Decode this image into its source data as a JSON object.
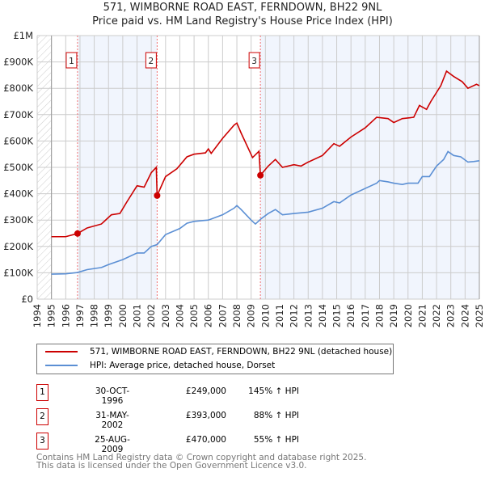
{
  "chart_data": {
    "type": "line",
    "title": "571, WIMBORNE ROAD EAST, FERNDOWN, BH22 9NL",
    "subtitle": "Price paid vs. HM Land Registry's House Price Index (HPI)",
    "xlim": [
      1994,
      2025
    ],
    "ylim": [
      0,
      1000000
    ],
    "y_ticks": [
      "£0",
      "£100K",
      "£200K",
      "£300K",
      "£400K",
      "£500K",
      "£600K",
      "£700K",
      "£800K",
      "£900K",
      "£1M"
    ],
    "x_ticks": [
      "1994",
      "1995",
      "1996",
      "1997",
      "1998",
      "1999",
      "2000",
      "2001",
      "2002",
      "2003",
      "2004",
      "2005",
      "2006",
      "2007",
      "2008",
      "2009",
      "2010",
      "2011",
      "2012",
      "2013",
      "2014",
      "2015",
      "2016",
      "2017",
      "2018",
      "2019",
      "2020",
      "2021",
      "2022",
      "2023",
      "2024",
      "2025"
    ],
    "grid": true,
    "series": [
      {
        "name": "571, WIMBORNE ROAD EAST, FERNDOWN, BH22 9NL (detached house)",
        "color": "#cc0000",
        "x": [
          1995,
          1996,
          1996.83,
          1997.5,
          1998.5,
          1999.2,
          1999.8,
          2000.3,
          2001,
          2001.5,
          2002,
          2002.35,
          2002.41,
          2003,
          2003.8,
          2004.5,
          2005,
          2005.8,
          2006,
          2006.2,
          2007,
          2007.8,
          2008,
          2008.3,
          2009.1,
          2009.55,
          2009.65,
          2010.2,
          2010.7,
          2011.2,
          2012,
          2012.5,
          2013,
          2014,
          2014.8,
          2015.2,
          2016,
          2017,
          2017.8,
          2018.6,
          2019,
          2019.6,
          2020.4,
          2020.8,
          2021.3,
          2021.6,
          2022.3,
          2022.7,
          2023.2,
          2023.8,
          2024.2,
          2024.8,
          2025
        ],
        "y": [
          237000,
          237000,
          249000,
          270000,
          285000,
          320000,
          325000,
          370000,
          430000,
          425000,
          480000,
          500000,
          393000,
          465000,
          495000,
          540000,
          550000,
          555000,
          570000,
          553000,
          610000,
          660000,
          668000,
          630000,
          537000,
          561000,
          470000,
          505000,
          530000,
          500000,
          510000,
          505000,
          520000,
          545000,
          590000,
          580000,
          615000,
          650000,
          690000,
          685000,
          670000,
          685000,
          690000,
          735000,
          720000,
          750000,
          810000,
          865000,
          845000,
          825000,
          800000,
          815000,
          810000
        ]
      },
      {
        "name": "HPI: Average price, detached house, Dorset",
        "color": "#5b8fd4",
        "x": [
          1995,
          1996,
          1996.83,
          1997.5,
          1998.5,
          1999,
          2000,
          2001,
          2001.5,
          2002,
          2002.41,
          2003,
          2004,
          2004.5,
          2005,
          2006,
          2007,
          2007.8,
          2008,
          2008.3,
          2009,
          2009.3,
          2009.7,
          2010.2,
          2010.7,
          2011.2,
          2012,
          2013,
          2014,
          2014.8,
          2015.2,
          2016,
          2017,
          2017.8,
          2018,
          2018.6,
          2019,
          2019.6,
          2020,
          2020.7,
          2021,
          2021.5,
          2022,
          2022.5,
          2022.8,
          2023.2,
          2023.7,
          2024.2,
          2024.6,
          2025
        ],
        "y": [
          95000,
          96000,
          101000,
          112000,
          120000,
          131000,
          150000,
          175000,
          175000,
          200000,
          207000,
          245000,
          268000,
          288000,
          295000,
          300000,
          320000,
          345000,
          355000,
          340000,
          300000,
          285000,
          305000,
          325000,
          340000,
          320000,
          325000,
          330000,
          345000,
          370000,
          365000,
          395000,
          420000,
          440000,
          450000,
          445000,
          440000,
          435000,
          440000,
          440000,
          465000,
          465000,
          505000,
          530000,
          560000,
          545000,
          540000,
          520000,
          522000,
          525000
        ]
      }
    ],
    "shaded_periods": [
      [
        1996.83,
        2002.41
      ],
      [
        2009.65,
        2025
      ]
    ],
    "sales": [
      {
        "num": "1",
        "x": 1996.83,
        "y": 249000,
        "date": "30-OCT-1996",
        "price": "£249,000",
        "hpi": "145% ↑ HPI"
      },
      {
        "num": "2",
        "x": 2002.41,
        "y": 393000,
        "date": "31-MAY-2002",
        "price": "£393,000",
        "hpi": "88% ↑ HPI"
      },
      {
        "num": "3",
        "x": 2009.65,
        "y": 470000,
        "date": "25-AUG-2009",
        "price": "£470,000",
        "hpi": "55% ↑ HPI"
      }
    ]
  },
  "footer": {
    "line1": "Contains HM Land Registry data © Crown copyright and database right 2025.",
    "line2": "This data is licensed under the Open Government Licence v3.0."
  }
}
